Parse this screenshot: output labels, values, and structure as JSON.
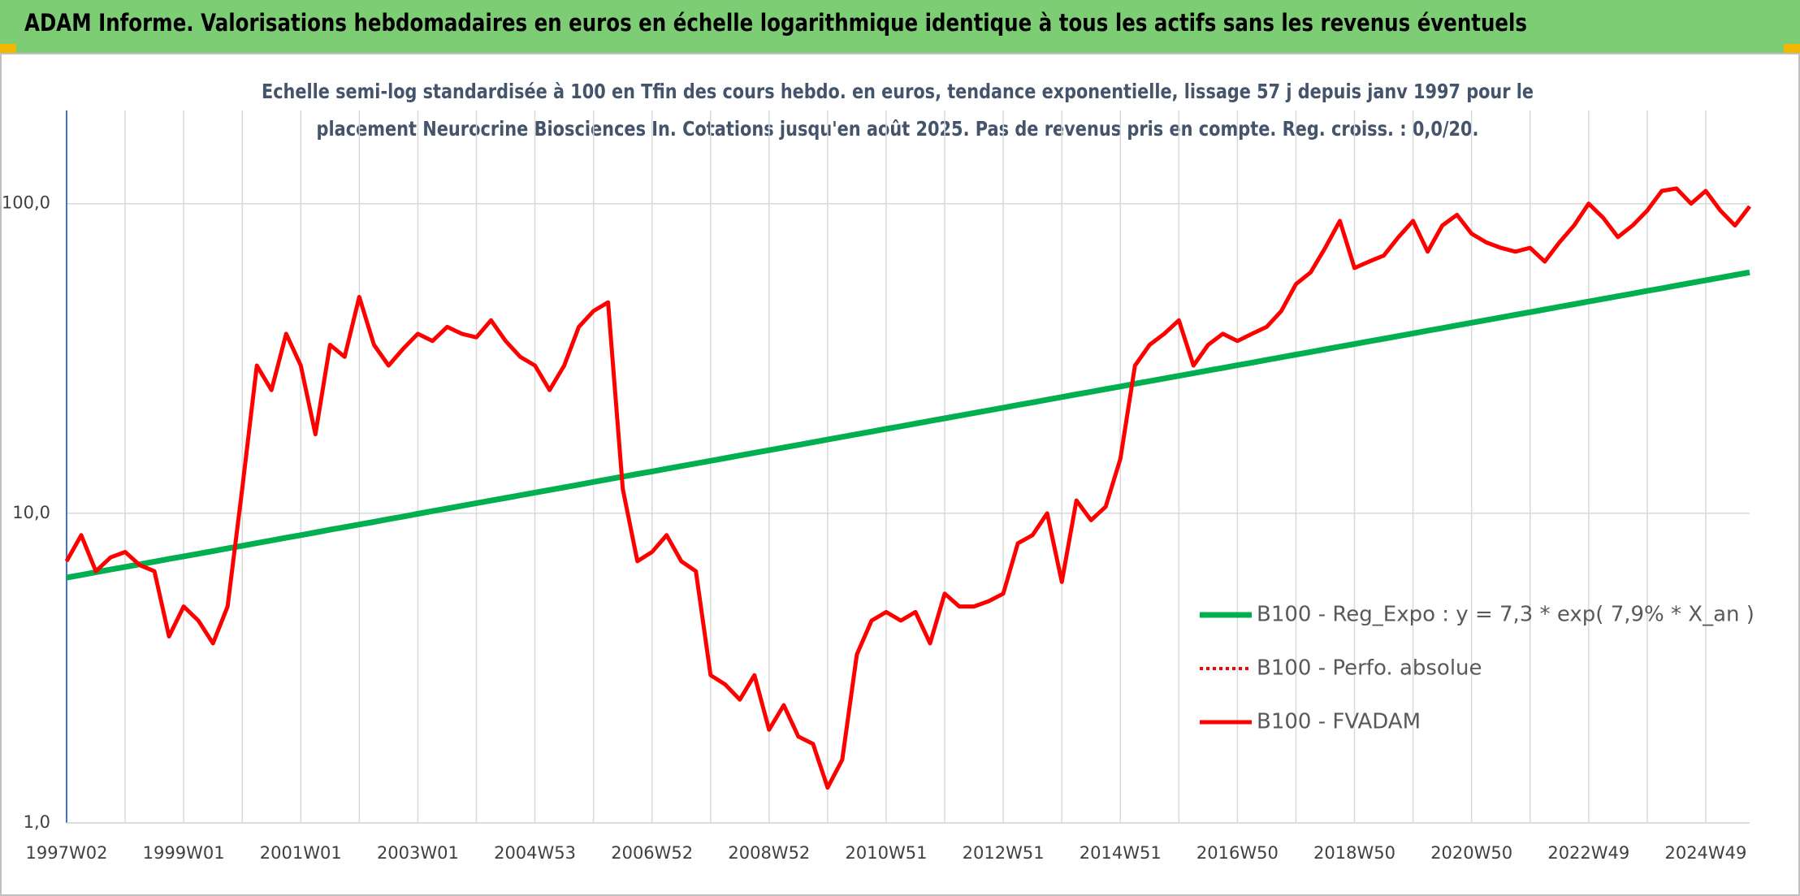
{
  "chart_data": {
    "type": "line",
    "title": "ADAM Informe. Valorisations hebdomadaires en euros en échelle logarithmique identique à tous les actifs sans les revenus éventuels",
    "subtitle": [
      "Echelle semi-log standardisée à 100 en Tfin des cours hebdo. en euros, tendance exponentielle, lissage 57 j depuis janv 1997 pour le",
      "placement Neurocrine Biosciences In. Cotations jusqu'en août 2025. Pas de revenus pris en compte. Reg. croiss. : 0,0/20."
    ],
    "categories": [
      "1997W02",
      null,
      null,
      null,
      null,
      null,
      null,
      null,
      "1999W01",
      null,
      null,
      null,
      null,
      null,
      null,
      null,
      "2001W01",
      null,
      null,
      null,
      null,
      null,
      null,
      null,
      "2003W01",
      null,
      null,
      null,
      null,
      null,
      null,
      null,
      "2004W53",
      null,
      null,
      null,
      null,
      null,
      null,
      null,
      "2006W52",
      null,
      null,
      null,
      null,
      null,
      null,
      null,
      "2008W52",
      null,
      null,
      null,
      null,
      null,
      null,
      null,
      "2010W51",
      null,
      null,
      null,
      null,
      null,
      null,
      null,
      "2012W51",
      null,
      null,
      null,
      null,
      null,
      null,
      null,
      "2014W51",
      null,
      null,
      null,
      null,
      null,
      null,
      null,
      "2016W50",
      null,
      null,
      null,
      null,
      null,
      null,
      null,
      "2018W50",
      null,
      null,
      null,
      null,
      null,
      null,
      null,
      "2020W50",
      null,
      null,
      null,
      null,
      null,
      null,
      null,
      "2022W49",
      null,
      null,
      null,
      null,
      null,
      null,
      null,
      "2024W49",
      null,
      null,
      null
    ],
    "series": [
      {
        "name": "B100 - Reg_Expo : y = 7,3 * exp( 7,9% *  X_an )",
        "color": "#00b050",
        "style": "solid",
        "values": [
          6.2,
          6.32,
          6.45,
          6.58,
          6.71,
          6.84,
          6.98,
          7.12,
          7.26,
          7.4,
          7.55,
          7.7,
          7.85,
          8.01,
          8.17,
          8.34,
          8.5,
          8.67,
          8.85,
          9.02,
          9.2,
          9.38,
          9.57,
          9.76,
          9.96,
          10.16,
          10.36,
          10.57,
          10.78,
          10.99,
          11.21,
          11.43,
          11.66,
          11.89,
          12.13,
          12.37,
          12.62,
          12.87,
          13.13,
          13.39,
          13.65,
          13.92,
          14.2,
          14.48,
          14.77,
          15.07,
          15.37,
          15.68,
          15.99,
          16.31,
          16.63,
          16.96,
          17.3,
          17.65,
          18.0,
          18.36,
          18.73,
          19.1,
          19.48,
          19.87,
          20.26,
          20.67,
          21.08,
          21.5,
          21.93,
          22.37,
          22.81,
          23.27,
          23.73,
          24.21,
          24.69,
          25.18,
          25.68,
          26.2,
          26.72,
          27.25,
          27.79,
          28.35,
          28.91,
          29.49,
          30.07,
          30.67,
          31.29,
          31.91,
          32.55,
          33.19,
          33.86,
          34.53,
          35.22,
          35.92,
          36.63,
          37.36,
          38.11,
          38.87,
          39.64,
          40.44,
          41.24,
          42.06,
          42.9,
          43.76,
          44.63,
          45.52,
          46.43,
          47.35,
          48.3,
          49.26,
          50.24,
          51.24,
          52.27,
          53.31,
          54.37,
          55.45,
          56.56,
          57.69,
          58.84,
          60.0
        ]
      },
      {
        "name": "B100 - Perfo. absolue",
        "color": "#ff0000",
        "style": "dotted",
        "values": [
          7,
          8.5,
          6.5,
          7.2,
          7.5,
          6.8,
          6.5,
          4,
          5,
          4.5,
          3.8,
          5,
          12,
          30,
          25,
          38,
          30,
          18,
          35,
          32,
          50,
          35,
          30,
          34,
          38,
          36,
          40,
          38,
          37,
          42,
          36,
          32,
          30,
          25,
          30,
          40,
          45,
          48,
          12,
          7,
          7.5,
          8.5,
          7,
          6.5,
          3,
          2.8,
          2.5,
          3,
          2,
          2.4,
          1.9,
          1.8,
          1.3,
          1.6,
          3.5,
          4.5,
          4.8,
          4.5,
          4.8,
          3.8,
          5.5,
          5,
          5,
          5.2,
          5.5,
          8,
          8.5,
          10,
          6,
          11,
          9.5,
          10.5,
          15,
          30,
          35,
          38,
          42,
          30,
          35,
          38,
          36,
          38,
          40,
          45,
          55,
          60,
          72,
          88,
          62,
          65,
          68,
          78,
          88,
          70,
          85,
          92,
          80,
          75,
          72,
          70,
          72,
          65,
          75,
          85,
          100,
          90,
          78,
          85,
          95,
          110,
          112,
          100,
          110,
          95,
          85,
          98
        ]
      },
      {
        "name": "B100 - FVADAM",
        "color": "#ff0000",
        "style": "solid",
        "values": [
          7,
          8.5,
          6.5,
          7.2,
          7.5,
          6.8,
          6.5,
          4,
          5,
          4.5,
          3.8,
          5,
          12,
          30,
          25,
          38,
          30,
          18,
          35,
          32,
          50,
          35,
          30,
          34,
          38,
          36,
          40,
          38,
          37,
          42,
          36,
          32,
          30,
          25,
          30,
          40,
          45,
          48,
          12,
          7,
          7.5,
          8.5,
          7,
          6.5,
          3,
          2.8,
          2.5,
          3,
          2,
          2.4,
          1.9,
          1.8,
          1.3,
          1.6,
          3.5,
          4.5,
          4.8,
          4.5,
          4.8,
          3.8,
          5.5,
          5,
          5,
          5.2,
          5.5,
          8,
          8.5,
          10,
          6,
          11,
          9.5,
          10.5,
          15,
          30,
          35,
          38,
          42,
          30,
          35,
          38,
          36,
          38,
          40,
          45,
          55,
          60,
          72,
          88,
          62,
          65,
          68,
          78,
          88,
          70,
          85,
          92,
          80,
          75,
          72,
          70,
          72,
          65,
          75,
          85,
          100,
          90,
          78,
          85,
          95,
          110,
          112,
          100,
          110,
          95,
          85,
          98
        ]
      }
    ],
    "log_scale": true,
    "ylim": [
      1,
      200
    ],
    "yticks": [
      {
        "value": 1,
        "label": "1,0"
      },
      {
        "value": 10,
        "label": "10,0"
      },
      {
        "value": 100,
        "label": "100,0"
      }
    ],
    "grid": true,
    "legend": "lower right"
  }
}
